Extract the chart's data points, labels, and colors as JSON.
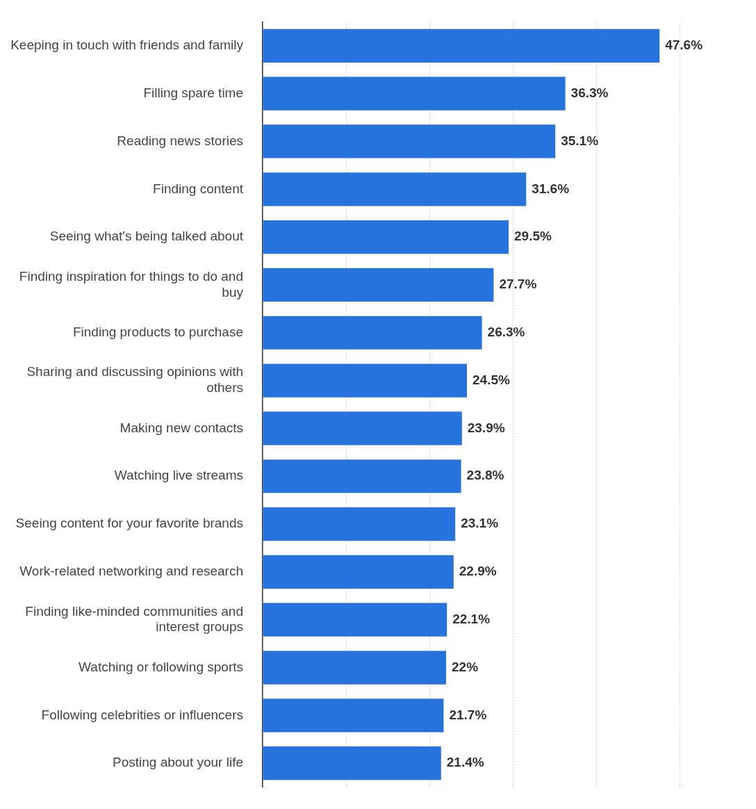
{
  "chart_data": {
    "type": "bar",
    "orientation": "horizontal",
    "categories": [
      "Keeping in touch with friends and family",
      "Filling spare time",
      "Reading news stories",
      "Finding content",
      "Seeing what's being talked about",
      "Finding inspiration for things to do and buy",
      "Finding products to purchase",
      "Sharing and discussing opinions with others",
      "Making new contacts",
      "Watching live streams",
      "Seeing content for your favorite brands",
      "Work-related networking and research",
      "Finding like-minded communities and interest groups",
      "Watching or following sports",
      "Following celebrities or influencers",
      "Posting about your life"
    ],
    "values": [
      47.6,
      36.3,
      35.1,
      31.6,
      29.5,
      27.7,
      26.3,
      24.5,
      23.9,
      23.8,
      23.1,
      22.9,
      22.1,
      22,
      21.7,
      21.4
    ],
    "value_labels": [
      "47.6%",
      "36.3%",
      "35.1%",
      "31.6%",
      "29.5%",
      "27.7%",
      "26.3%",
      "24.5%",
      "23.9%",
      "23.8%",
      "23.1%",
      "22.9%",
      "22.1%",
      "22%",
      "21.7%",
      "21.4%"
    ],
    "color": "#2673dd",
    "xticks": [
      {
        "value": 0,
        "label": null
      },
      {
        "value": 10,
        "label": null
      },
      {
        "value": 20,
        "label": null
      },
      {
        "value": 30,
        "label": null
      },
      {
        "value": 40,
        "label": null
      },
      {
        "value": 50,
        "label": null
      }
    ],
    "grid": "x"
  }
}
